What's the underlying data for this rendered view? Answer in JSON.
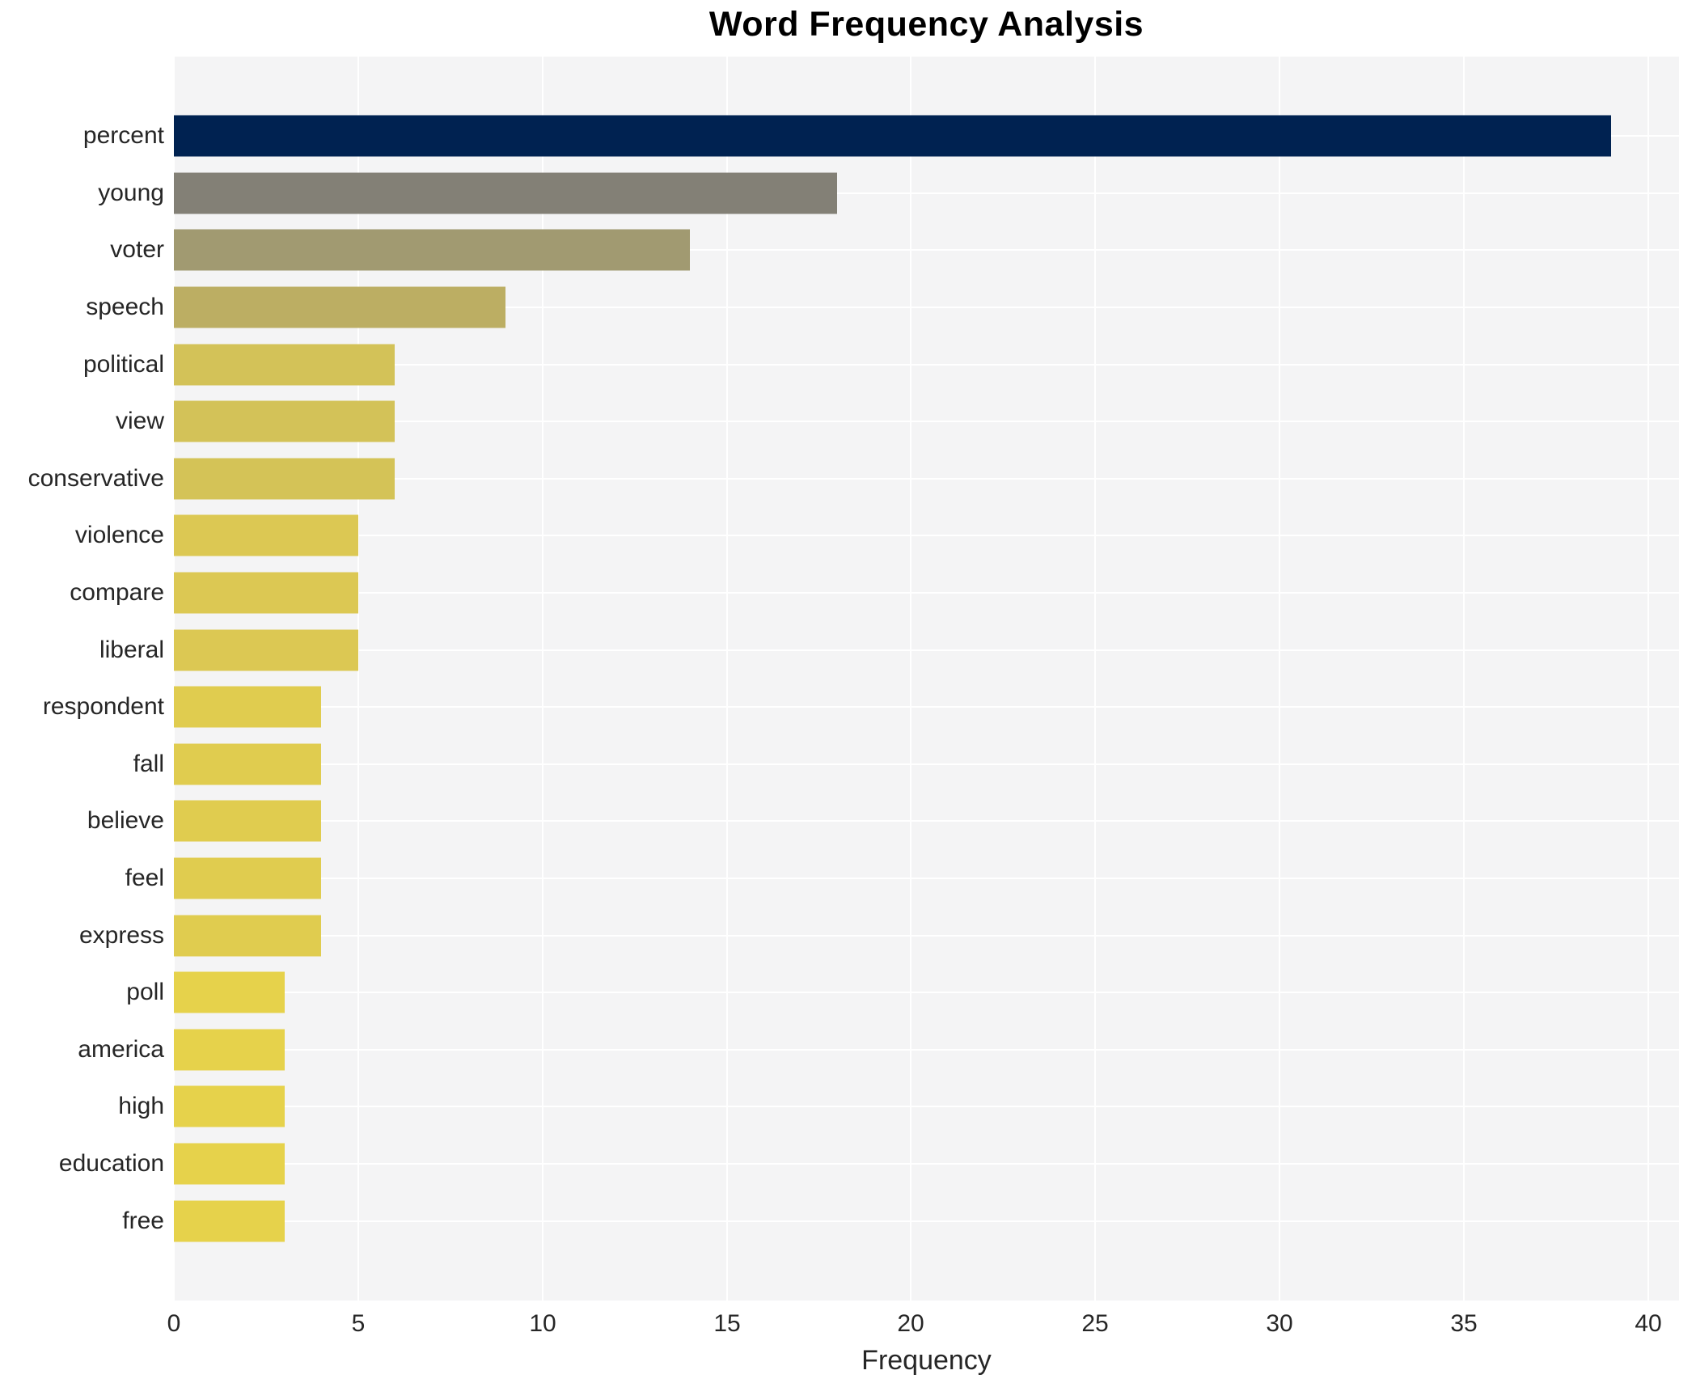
{
  "title": "Word Frequency Analysis",
  "chart_data": {
    "type": "bar",
    "orientation": "horizontal",
    "title": "Word Frequency Analysis",
    "xlabel": "Frequency",
    "ylabel": "",
    "categories": [
      "percent",
      "young",
      "voter",
      "speech",
      "political",
      "view",
      "conservative",
      "violence",
      "compare",
      "liberal",
      "respondent",
      "fall",
      "believe",
      "feel",
      "express",
      "poll",
      "america",
      "high",
      "education",
      "free"
    ],
    "values": [
      39,
      18,
      14,
      9,
      6,
      6,
      6,
      5,
      5,
      5,
      4,
      4,
      4,
      4,
      4,
      3,
      3,
      3,
      3,
      3
    ],
    "bar_colors": [
      "#002251",
      "#838076",
      "#a19a71",
      "#bcae63",
      "#d3c258",
      "#d3c258",
      "#d4c357",
      "#dcc853",
      "#dcc853",
      "#dcc853",
      "#e0cc4f",
      "#e0cc4f",
      "#e0cc4f",
      "#e0cc4f",
      "#e0cc4f",
      "#e6d24b",
      "#e6d24b",
      "#e6d24b",
      "#e6d24b",
      "#e6d24b"
    ],
    "xticks": [
      0,
      5,
      10,
      15,
      20,
      25,
      30,
      35,
      40
    ],
    "xlim": [
      0,
      40.84
    ],
    "grid": true,
    "legend": "none",
    "plot_bg_color": "#f4f4f5",
    "grid_color": "#ffffff",
    "tick_text_color": "#262626",
    "title_color": "#000000"
  }
}
